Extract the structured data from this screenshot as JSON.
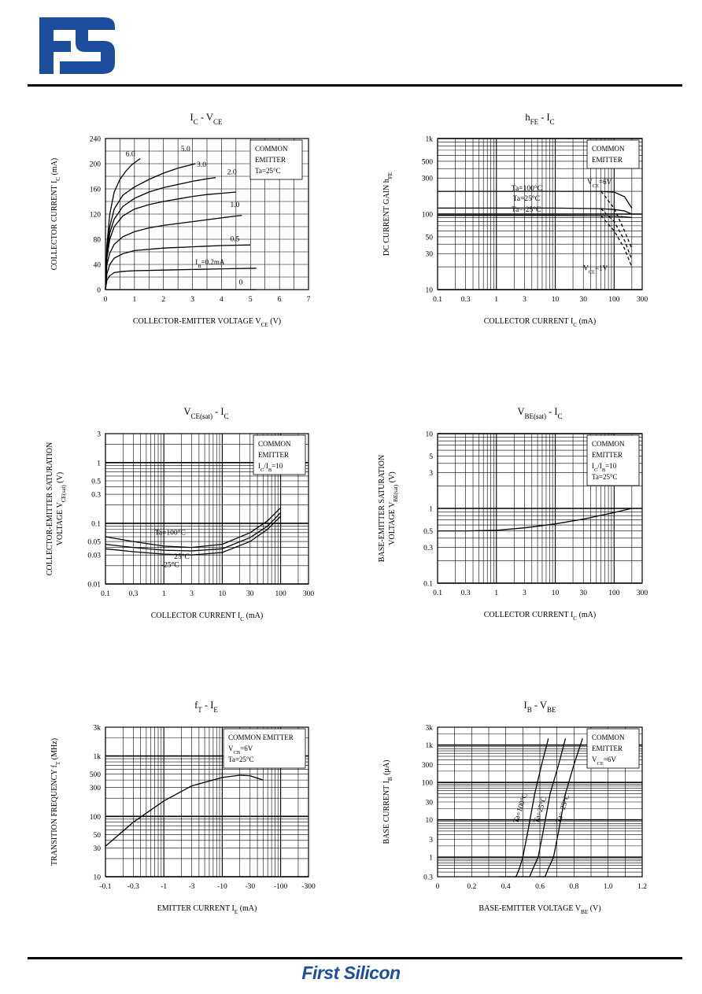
{
  "brand": {
    "footer": "First Silicon",
    "logo_color": "#1d4e9e"
  },
  "charts": [
    {
      "id": "ic-vce",
      "title": {
        "main": "I",
        "sub": "C",
        "mid": " - V",
        "sub2": "CE"
      },
      "xlabel": {
        "main": "COLLECTOR-EMITTER VOLTAGE V",
        "sub": "CE",
        "tail": " (V)"
      },
      "ylabel": {
        "main": "COLLECTOR CURRENT I",
        "sub": "C",
        "tail": " (mA)"
      },
      "note": [
        "COMMON",
        "EMITTER",
        "Ta=25°C"
      ]
    },
    {
      "id": "hfe-ic",
      "title": {
        "main": "h",
        "sub": "FE",
        "mid": " - I",
        "sub2": "C"
      },
      "xlabel": {
        "main": "COLLECTOR CURRENT I",
        "sub": "C",
        "tail": " (mA)"
      },
      "ylabel": {
        "main": "DC CURRENT GAIN h",
        "sub": "FE",
        "tail": ""
      },
      "note": [
        "COMMON",
        "EMITTER"
      ]
    },
    {
      "id": "vcesat-ic",
      "title": {
        "main": "V",
        "sub": "CE(sat)",
        "mid": " - I",
        "sub2": "C"
      },
      "xlabel": {
        "main": "COLLECTOR CURRENT I",
        "sub": "C",
        "tail": " (mA)"
      },
      "ylabel": {
        "main": "COLLECTOR-EMITTER SATURATION",
        "line2": "VOLTAGE V",
        "sub": "CE(sat)",
        "tail": " (V)"
      },
      "note": [
        "COMMON",
        "EMITTER",
        "I_C/I_B=10"
      ]
    },
    {
      "id": "vbesat-ic",
      "title": {
        "main": "V",
        "sub": "BE(sat)",
        "mid": " - I",
        "sub2": "C"
      },
      "xlabel": {
        "main": "COLLECTOR CURRENT I",
        "sub": "C",
        "tail": " (mA)"
      },
      "ylabel": {
        "main": "BASE-EMITTER SATURATION",
        "line2": "VOLTAGE V",
        "sub": "BE(sat)",
        "tail": " (V)"
      },
      "note": [
        "COMMON",
        "EMITTER",
        "I_C/I_B=10",
        "Ta=25°C"
      ]
    },
    {
      "id": "ft-ie",
      "title": {
        "main": "f",
        "sub": "T",
        "mid": " - I",
        "sub2": "E"
      },
      "xlabel": {
        "main": "EMITTER CURRENT I",
        "sub": "E",
        "tail": " (mA)"
      },
      "ylabel": {
        "main": "TRANSITION FREQUENCY f",
        "sub": "T",
        "tail": " (MHz)"
      },
      "note": [
        "COMMON EMITTER",
        "V_CB=6V",
        "Ta=25°C"
      ]
    },
    {
      "id": "ib-vbe",
      "title": {
        "main": "I",
        "sub": "B",
        "mid": " - V",
        "sub2": "BE"
      },
      "xlabel": {
        "main": "BASE-EMITTER VOLTAGE V",
        "sub": "BE",
        "tail": " (V)"
      },
      "ylabel": {
        "main": "BASE CURRENT I",
        "sub": "B",
        "tail": " (μA)"
      },
      "note": [
        "COMMON",
        "EMITTER",
        "V_CE=6V"
      ]
    }
  ],
  "chart_data": [
    {
      "type": "line",
      "title": "IC - VCE",
      "xlabel": "COLLECTOR-EMITTER VOLTAGE VCE (V)",
      "ylabel": "COLLECTOR CURRENT IC (mA)",
      "xlim": [
        0,
        7
      ],
      "ylim": [
        0,
        240
      ],
      "xticks": [
        "0",
        "1",
        "2",
        "3",
        "4",
        "5",
        "6",
        "7"
      ],
      "yticks": [
        "0",
        "40",
        "80",
        "120",
        "160",
        "200",
        "240"
      ],
      "grid": true,
      "series": [
        {
          "name": "6.0",
          "x": [
            0,
            0.05,
            0.15,
            0.3,
            0.5,
            0.7,
            0.9,
            1.1,
            1.2
          ],
          "y": [
            0,
            70,
            120,
            155,
            175,
            188,
            198,
            205,
            208
          ]
        },
        {
          "name": "5.0",
          "x": [
            0,
            0.05,
            0.15,
            0.3,
            0.6,
            1,
            1.5,
            2,
            2.5,
            3.1
          ],
          "y": [
            0,
            62,
            100,
            128,
            150,
            163,
            175,
            185,
            193,
            200
          ]
        },
        {
          "name": "3.0",
          "x": [
            0,
            0.05,
            0.15,
            0.3,
            0.6,
            1,
            1.5,
            2,
            2.5,
            3,
            3.5,
            3.8
          ],
          "y": [
            0,
            55,
            90,
            112,
            132,
            145,
            155,
            162,
            167,
            172,
            176,
            178
          ]
        },
        {
          "name": "2.0",
          "x": [
            0,
            0.05,
            0.15,
            0.3,
            0.6,
            1,
            1.5,
            2,
            2.5,
            3,
            3.5,
            4,
            4.5
          ],
          "y": [
            0,
            50,
            80,
            100,
            117,
            128,
            135,
            140,
            144,
            148,
            151,
            153,
            155
          ]
        },
        {
          "name": "1.0",
          "x": [
            0,
            0.05,
            0.15,
            0.3,
            0.6,
            1,
            1.5,
            2,
            3,
            4,
            4.7
          ],
          "y": [
            0,
            40,
            58,
            72,
            84,
            92,
            98,
            102,
            108,
            114,
            118
          ]
        },
        {
          "name": "0.5",
          "x": [
            0,
            0.05,
            0.15,
            0.3,
            0.6,
            1,
            2,
            3,
            4,
            5
          ],
          "y": [
            0,
            25,
            40,
            50,
            57,
            62,
            66,
            68,
            70,
            71
          ]
        },
        {
          "name": "IB=0.2mA",
          "x": [
            0,
            0.05,
            0.15,
            0.3,
            0.6,
            1,
            2,
            3,
            4,
            5.2
          ],
          "y": [
            0,
            15,
            22,
            27,
            29,
            30,
            31,
            32,
            33,
            34
          ]
        },
        {
          "name": "0",
          "x": [
            0,
            5.2
          ],
          "y": [
            0,
            0
          ]
        }
      ]
    },
    {
      "type": "line",
      "title": "hFE - IC",
      "xlabel": "COLLECTOR CURRENT IC (mA)",
      "ylabel": "DC CURRENT GAIN hFE",
      "xlim": [
        0.1,
        300
      ],
      "ylim": [
        10,
        1000
      ],
      "scale": "log-log",
      "xticks": [
        "0.1",
        "0.3",
        "1",
        "3",
        "10",
        "30",
        "100",
        "300"
      ],
      "yticks": [
        "10",
        "30",
        "50",
        "100",
        "300",
        "500",
        "1k"
      ],
      "grid": true,
      "series": [
        {
          "name": "Ta=100°C (VCE=6V)",
          "x": [
            0.1,
            1,
            10,
            60,
            100,
            150,
            200
          ],
          "y": [
            200,
            200,
            200,
            200,
            195,
            170,
            120
          ]
        },
        {
          "name": "Ta=25°C (VCE=6V)",
          "x": [
            0.1,
            1,
            10,
            60,
            100,
            150,
            200
          ],
          "y": [
            120,
            120,
            120,
            118,
            115,
            110,
            100
          ]
        },
        {
          "name": "Ta=-25°C (VCE=6V)",
          "x": [
            0.1,
            1,
            10,
            60,
            100,
            150,
            200
          ],
          "y": [
            96,
            96,
            96,
            95,
            94,
            92,
            90
          ]
        },
        {
          "name": "Ta=100°C (VCE=1V)",
          "x": [
            60,
            100,
            150,
            200
          ],
          "y": [
            200,
            120,
            60,
            35
          ]
        },
        {
          "name": "Ta=25°C (VCE=1V)",
          "x": [
            60,
            100,
            150,
            200
          ],
          "y": [
            118,
            80,
            45,
            25
          ]
        },
        {
          "name": "Ta=-25°C (VCE=1V)",
          "x": [
            60,
            100,
            150,
            200
          ],
          "y": [
            95,
            60,
            35,
            20
          ]
        }
      ]
    },
    {
      "type": "line",
      "title": "VCE(sat) - IC",
      "xlabel": "COLLECTOR CURRENT IC (mA)",
      "ylabel": "COLLECTOR-EMITTER SATURATION VOLTAGE VCE(sat) (V)",
      "xlim": [
        0.1,
        300
      ],
      "ylim": [
        0.01,
        3
      ],
      "scale": "log-log",
      "xticks": [
        "0.1",
        "0.3",
        "1",
        "3",
        "10",
        "30",
        "100",
        "300"
      ],
      "yticks": [
        "0.01",
        "0.03",
        "0.05",
        "0.1",
        "0.3",
        "0.5",
        "1",
        "3"
      ],
      "grid": true,
      "series": [
        {
          "name": "Ta=100°C",
          "x": [
            0.1,
            0.3,
            1,
            3,
            10,
            30,
            60,
            100
          ],
          "y": [
            0.06,
            0.05,
            0.042,
            0.04,
            0.045,
            0.07,
            0.11,
            0.18
          ]
        },
        {
          "name": "25°C",
          "x": [
            0.1,
            0.3,
            1,
            3,
            10,
            30,
            60,
            100
          ],
          "y": [
            0.045,
            0.04,
            0.036,
            0.035,
            0.038,
            0.058,
            0.09,
            0.15
          ]
        },
        {
          "name": "-25°C",
          "x": [
            0.1,
            0.3,
            1,
            3,
            10,
            30,
            60,
            100
          ],
          "y": [
            0.038,
            0.034,
            0.031,
            0.03,
            0.033,
            0.05,
            0.08,
            0.13
          ]
        }
      ]
    },
    {
      "type": "line",
      "title": "VBE(sat) - IC",
      "xlabel": "COLLECTOR CURRENT IC (mA)",
      "ylabel": "BASE-EMITTER SATURATION VOLTAGE VBE(sat) (V)",
      "xlim": [
        0.1,
        300
      ],
      "ylim": [
        0.1,
        10
      ],
      "scale": "log-log",
      "xticks": [
        "0.1",
        "0.3",
        "1",
        "3",
        "10",
        "30",
        "100",
        "300"
      ],
      "yticks": [
        "0.1",
        "0.3",
        "0.5",
        "1",
        "3",
        "5",
        "10"
      ],
      "grid": true,
      "series": [
        {
          "name": "Ta=25°C",
          "x": [
            0.1,
            0.3,
            1,
            3,
            10,
            30,
            100,
            200
          ],
          "y": [
            0.5,
            0.5,
            0.51,
            0.55,
            0.62,
            0.72,
            0.88,
            1.0
          ]
        }
      ]
    },
    {
      "type": "line",
      "title": "fT - IE",
      "xlabel": "EMITTER CURRENT IE (mA)",
      "ylabel": "TRANSITION FREQUENCY fT (MHz)",
      "xlim": [
        -0.1,
        -300
      ],
      "ylim": [
        10,
        3000
      ],
      "scale": "log-log",
      "xticks": [
        "-0.1",
        "-0.3",
        "-1",
        "-3",
        "-10",
        "-30",
        "-100",
        "-300"
      ],
      "yticks": [
        "10",
        "30",
        "50",
        "100",
        "300",
        "500",
        "1k",
        "3k"
      ],
      "grid": true,
      "series": [
        {
          "name": "VCB=6V",
          "x": [
            -0.1,
            -0.3,
            -1,
            -3,
            -10,
            -20,
            -30,
            -50
          ],
          "y": [
            32,
            80,
            180,
            320,
            440,
            480,
            470,
            400
          ]
        }
      ]
    },
    {
      "type": "line",
      "title": "IB - VBE",
      "xlabel": "BASE-EMITTER VOLTAGE VBE (V)",
      "ylabel": "BASE CURRENT IB (μA)",
      "xlim": [
        0,
        1.2
      ],
      "ylim": [
        0.3,
        3000
      ],
      "scale": "linear-log",
      "xticks": [
        "0",
        "0.2",
        "0.4",
        "0.6",
        "0.8",
        "1.0",
        "1.2"
      ],
      "yticks": [
        "0.3",
        "1",
        "3",
        "10",
        "30",
        "100",
        "300",
        "1k",
        "3k"
      ],
      "grid": true,
      "series": [
        {
          "name": "Ta=100°C",
          "x": [
            0.36,
            0.46,
            0.48,
            0.5,
            0.53,
            0.57,
            0.61,
            0.65
          ],
          "y": [
            0.3,
            0.3,
            0.5,
            1,
            5,
            50,
            300,
            1500
          ]
        },
        {
          "name": "Ta=25°C",
          "x": [
            0.45,
            0.54,
            0.56,
            0.59,
            0.62,
            0.66,
            0.71,
            0.75
          ],
          "y": [
            0.3,
            0.3,
            0.5,
            1,
            5,
            50,
            300,
            1500
          ]
        },
        {
          "name": "Ta=-25°C",
          "x": [
            0.58,
            0.63,
            0.65,
            0.68,
            0.71,
            0.75,
            0.8,
            0.85
          ],
          "y": [
            0.3,
            0.3,
            0.5,
            1,
            5,
            50,
            300,
            1500
          ]
        }
      ]
    }
  ]
}
